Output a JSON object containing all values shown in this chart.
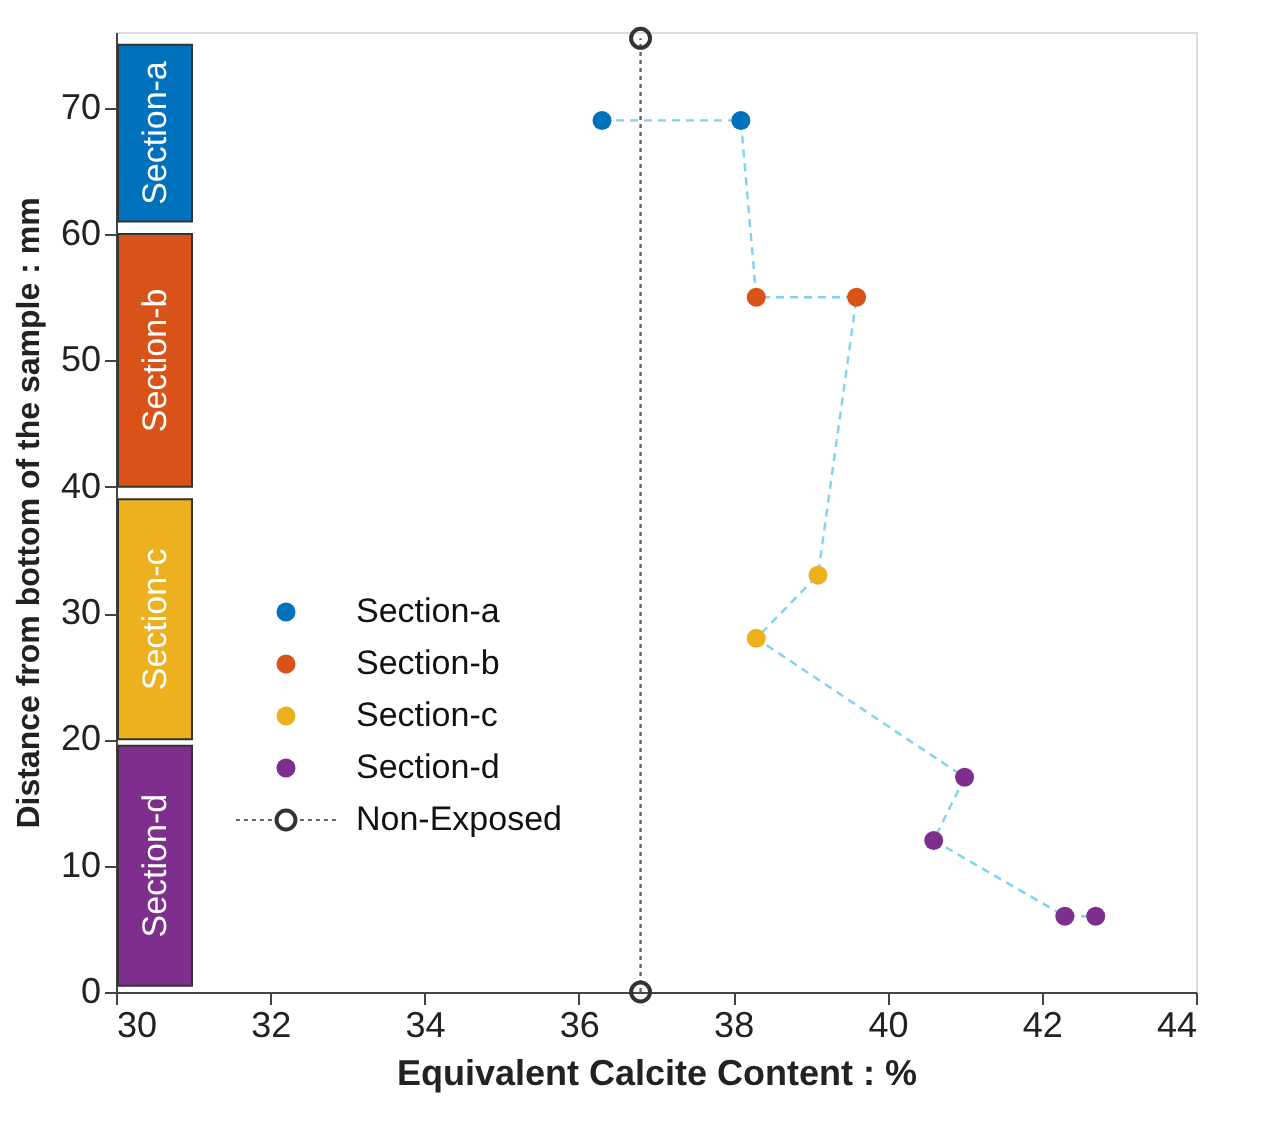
{
  "chart_data": {
    "type": "scatter",
    "xlabel": "Equivalent Calcite Content : %",
    "ylabel": "Distance from bottom of the sample : mm",
    "xlim": [
      30,
      44
    ],
    "xticks": [
      30,
      32,
      34,
      36,
      38,
      40,
      42,
      44
    ],
    "ylim": [
      0,
      76
    ],
    "yticks": [
      0,
      10,
      20,
      30,
      40,
      50,
      60,
      70
    ],
    "grid": false,
    "legend": "bottom left",
    "series": [
      {
        "name": "Section-a",
        "marker": "circle",
        "color": "#0072bd",
        "x": [
          36.3,
          38.1
        ],
        "values": [
          69,
          69
        ]
      },
      {
        "name": "Section-b",
        "marker": "circle",
        "color": "#d95319",
        "x": [
          38.3,
          39.6
        ],
        "values": [
          55,
          55
        ]
      },
      {
        "name": "Section-c",
        "marker": "circle",
        "color": "#edb120",
        "x": [
          39.1,
          38.3
        ],
        "values": [
          33,
          28
        ]
      },
      {
        "name": "Section-d",
        "marker": "circle",
        "color": "#7e2f8e",
        "x": [
          41.0,
          40.6,
          42.3,
          42.7
        ],
        "values": [
          17,
          12,
          6,
          6
        ]
      },
      {
        "type": "line",
        "marker": "none",
        "line_style": "dashed",
        "color": "#7fd3f2",
        "x": [
          36.3,
          38.1,
          38.3,
          39.6,
          39.1,
          38.3,
          41.0,
          40.6,
          42.3,
          42.7
        ],
        "values": [
          69,
          69,
          55,
          55,
          33,
          28,
          17,
          12,
          6,
          6
        ]
      },
      {
        "name": "Non-Exposed",
        "type": "line",
        "marker": "circle",
        "line_style": "dotted",
        "color": "#666666",
        "x": [
          36.8,
          36.8
        ],
        "values": [
          0,
          75.5
        ]
      }
    ],
    "bands": [
      {
        "axis": "y",
        "from": 61,
        "to": 75,
        "label": "Section-a",
        "color": "#0072bd"
      },
      {
        "axis": "y",
        "from": 40,
        "to": 60,
        "label": "Section-b",
        "color": "#d95319"
      },
      {
        "axis": "y",
        "from": 20,
        "to": 39,
        "label": "Section-c",
        "color": "#edb120"
      },
      {
        "axis": "y",
        "from": 0.5,
        "to": 19.5,
        "label": "Section-d",
        "color": "#7e2f8e"
      }
    ]
  }
}
